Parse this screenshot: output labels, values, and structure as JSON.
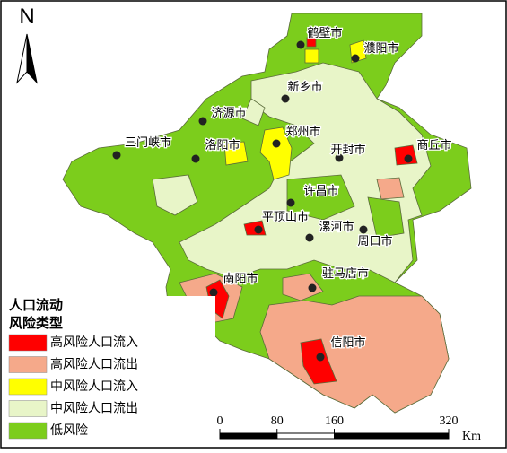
{
  "north_arrow": "N",
  "cities": [
    "鹤壁市",
    "濮阳市",
    "新乡市",
    "济源市",
    "三门峡市",
    "洛阳市",
    "郑州市",
    "开封市",
    "商丘市",
    "许昌市",
    "平顶山市",
    "漯河市",
    "周口市",
    "南阳市",
    "驻马店市",
    "信阳市"
  ],
  "legend": {
    "title": [
      "人口流动",
      "风险类型"
    ],
    "items": [
      {
        "label": "高风险人口流入",
        "color": "#ff0000"
      },
      {
        "label": "高风险人口流出",
        "color": "#f5a98a"
      },
      {
        "label": "中风险人口流入",
        "color": "#ffff00"
      },
      {
        "label": "中风险人口流出",
        "color": "#e8f5c8"
      },
      {
        "label": "低风险",
        "color": "#7ccd1c"
      }
    ]
  },
  "scale_bar": {
    "ticks": [
      0,
      80,
      160,
      320
    ],
    "unit": "Km"
  }
}
